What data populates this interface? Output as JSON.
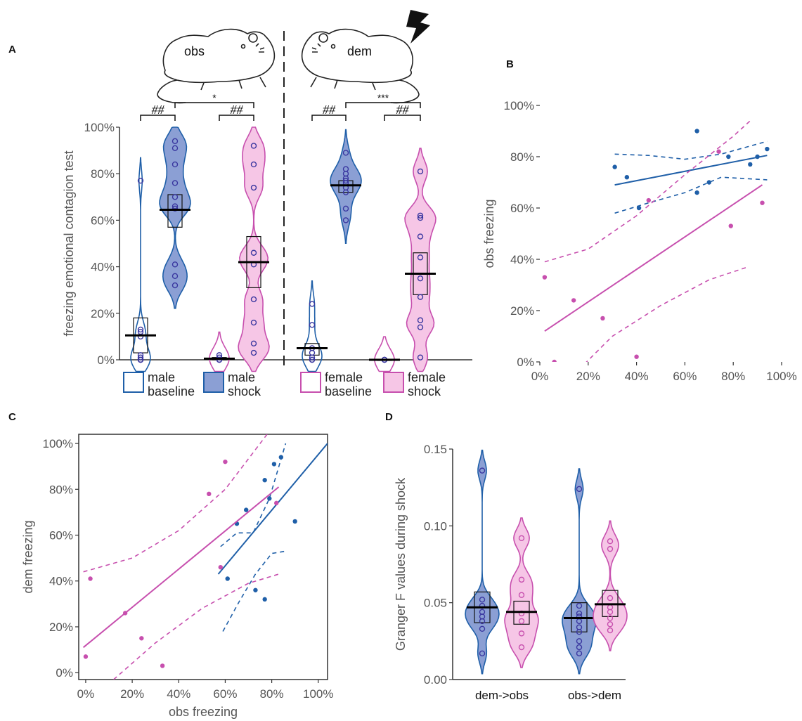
{
  "panels": {
    "a": "A",
    "b": "B",
    "c": "C",
    "d": "D"
  },
  "colors": {
    "male": "#1f5fa8",
    "male_fill": "#8b9fd4",
    "female": "#c74fae",
    "female_fill": "#f6c6e6",
    "median": "#000000"
  },
  "illustration": {
    "obs_label": "obs",
    "dem_label": "dem",
    "icons": [
      "mouse-icon",
      "mouse-icon",
      "lightning-icon"
    ]
  },
  "chart_data": [
    {
      "id": "A",
      "type": "violin",
      "ylabel": "freezing emotional contagion test",
      "ylim": [
        0,
        100
      ],
      "yticks": [
        "0%",
        "20%",
        "40%",
        "60%",
        "80%",
        "100%"
      ],
      "legend": [
        {
          "label_line1": "male",
          "label_line2": "baseline",
          "style": "male-outline"
        },
        {
          "label_line1": "male",
          "label_line2": "shock",
          "style": "male-filled"
        },
        {
          "label_line1": "female",
          "label_line2": "baseline",
          "style": "female-outline"
        },
        {
          "label_line1": "female",
          "label_line2": "shock",
          "style": "female-filled"
        }
      ],
      "groups": [
        {
          "name": "obs male baseline",
          "median": 10.5,
          "box": [
            3,
            18
          ],
          "points": [
            77,
            13,
            12,
            10,
            2,
            1,
            0,
            0,
            0,
            0
          ],
          "sex": "male",
          "filled": false
        },
        {
          "name": "obs male shock",
          "median": 64.5,
          "box": [
            57,
            71
          ],
          "points": [
            94,
            91,
            84,
            76,
            70,
            66,
            65,
            41,
            36,
            32
          ],
          "sex": "male",
          "filled": true
        },
        {
          "name": "obs female baseline",
          "median": 0.5,
          "box": [
            0,
            1
          ],
          "points": [
            2,
            1,
            0,
            0,
            0
          ],
          "sex": "female",
          "filled": false
        },
        {
          "name": "obs female shock",
          "median": 42,
          "box": [
            31,
            53
          ],
          "points": [
            92,
            84,
            74,
            46,
            41,
            26,
            16,
            7,
            3
          ],
          "sex": "female",
          "filled": true
        },
        {
          "name": "dem male baseline",
          "median": 5,
          "box": [
            2,
            7
          ],
          "points": [
            24,
            15,
            5,
            3,
            1,
            0,
            0
          ],
          "sex": "male",
          "filled": false
        },
        {
          "name": "dem male shock",
          "median": 75,
          "box": [
            72,
            77
          ],
          "points": [
            89,
            82,
            80,
            78,
            77,
            76,
            74,
            72,
            65,
            60
          ],
          "sex": "male",
          "filled": true
        },
        {
          "name": "dem female baseline",
          "median": 0,
          "box": [
            0,
            0
          ],
          "points": [
            0,
            0,
            0
          ],
          "sex": "female",
          "filled": false
        },
        {
          "name": "dem female shock",
          "median": 37,
          "box": [
            28,
            46
          ],
          "points": [
            81,
            62,
            61,
            53,
            44,
            35,
            27,
            17,
            14,
            1
          ],
          "sex": "female",
          "filled": true
        }
      ],
      "annotations": {
        "hash1": "##",
        "hash2": "##",
        "hash3": "##",
        "hash4": "##",
        "star_obs": "*",
        "star_dem": "***"
      }
    },
    {
      "id": "B",
      "type": "scatter",
      "xlim": [
        0,
        100
      ],
      "ylim": [
        0,
        100
      ],
      "xticks": [
        "0%",
        "20%",
        "40%",
        "60%",
        "80%",
        "100%"
      ],
      "yticks": [
        "0%",
        "20%",
        "40%",
        "60%",
        "80%",
        "100%"
      ],
      "xlabel": "",
      "ylabel": "obs freezing",
      "series": [
        {
          "sex": "male",
          "points": [
            [
              31,
              76
            ],
            [
              36,
              72
            ],
            [
              41,
              60
            ],
            [
              65,
              90
            ],
            [
              65,
              66
            ],
            [
              70,
              70
            ],
            [
              78,
              80
            ],
            [
              87,
              77
            ],
            [
              90,
              80
            ],
            [
              94,
              83
            ]
          ],
          "fit": [
            [
              31,
              69
            ],
            [
              94,
              80.5
            ]
          ],
          "ci_upper": [
            [
              31,
              81
            ],
            [
              45,
              80.5
            ],
            [
              60,
              79
            ],
            [
              75,
              81
            ],
            [
              94,
              86
            ]
          ],
          "ci_lower": [
            [
              31,
              58
            ],
            [
              45,
              62
            ],
            [
              60,
              66
            ],
            [
              75,
              72
            ],
            [
              94,
              71
            ]
          ]
        },
        {
          "sex": "female",
          "points": [
            [
              2,
              33
            ],
            [
              6,
              0
            ],
            [
              14,
              24
            ],
            [
              26,
              17
            ],
            [
              40,
              2
            ],
            [
              45,
              63
            ],
            [
              74,
              82
            ],
            [
              79,
              53
            ],
            [
              92,
              62
            ]
          ],
          "fit": [
            [
              2,
              12
            ],
            [
              92,
              69
            ]
          ],
          "ci_upper": [
            [
              2,
              39
            ],
            [
              20,
              44
            ],
            [
              40,
              57
            ],
            [
              60,
              73
            ],
            [
              80,
              88
            ],
            [
              87,
              94
            ]
          ],
          "ci_lower": [
            [
              14,
              -5
            ],
            [
              30,
              10
            ],
            [
              50,
              22
            ],
            [
              70,
              32
            ],
            [
              86,
              37
            ]
          ]
        }
      ]
    },
    {
      "id": "C",
      "type": "scatter",
      "xlim": [
        -3,
        104
      ],
      "ylim": [
        -3,
        104
      ],
      "xticks": [
        "0%",
        "20%",
        "40%",
        "60%",
        "80%",
        "100%"
      ],
      "yticks": [
        "0%",
        "20%",
        "40%",
        "60%",
        "80%",
        "100%"
      ],
      "xlabel": "obs freezing",
      "ylabel": "dem freezing",
      "series": [
        {
          "sex": "male",
          "points": [
            [
              61,
              41
            ],
            [
              65,
              65
            ],
            [
              69,
              71
            ],
            [
              73,
              36
            ],
            [
              77,
              32
            ],
            [
              77,
              84
            ],
            [
              79,
              76
            ],
            [
              81,
              91
            ],
            [
              84,
              94
            ],
            [
              90,
              66
            ]
          ],
          "fit": [
            [
              57,
              43
            ],
            [
              104,
              100
            ]
          ],
          "ci_upper": [
            [
              58,
              55
            ],
            [
              65,
              61
            ],
            [
              72,
              61
            ],
            [
              79,
              76
            ],
            [
              86,
              100
            ]
          ],
          "ci_lower": [
            [
              59,
              18
            ],
            [
              66,
              31
            ],
            [
              73,
              43
            ],
            [
              80,
              52
            ],
            [
              86,
              53
            ]
          ]
        },
        {
          "sex": "female",
          "points": [
            [
              0,
              7
            ],
            [
              2,
              41
            ],
            [
              17,
              26
            ],
            [
              24,
              15
            ],
            [
              33,
              3
            ],
            [
              53,
              78
            ],
            [
              58,
              46
            ],
            [
              60,
              92
            ],
            [
              82,
              74
            ]
          ],
          "fit": [
            [
              -1,
              11
            ],
            [
              83,
              81
            ]
          ],
          "ci_upper": [
            [
              -1,
              44
            ],
            [
              20,
              50
            ],
            [
              40,
              62
            ],
            [
              60,
              80
            ],
            [
              78,
              104
            ]
          ],
          "ci_lower": [
            [
              12,
              -3
            ],
            [
              30,
              13
            ],
            [
              50,
              28
            ],
            [
              70,
              39
            ],
            [
              83,
              43
            ]
          ]
        }
      ]
    },
    {
      "id": "D",
      "type": "violin",
      "ylabel": "Granger F values during shock",
      "ylim": [
        0,
        0.15
      ],
      "yticks": [
        "0.00",
        "0.05",
        "0.10",
        "0.15"
      ],
      "categories": [
        "dem->obs",
        "obs->dem"
      ],
      "groups": [
        {
          "name": "dem->obs male",
          "median": 0.047,
          "box": [
            0.037,
            0.057
          ],
          "points": [
            0.136,
            0.052,
            0.048,
            0.044,
            0.041,
            0.038,
            0.033,
            0.017
          ],
          "sex": "male",
          "filled": true
        },
        {
          "name": "dem->obs female",
          "median": 0.044,
          "box": [
            0.036,
            0.051
          ],
          "points": [
            0.092,
            0.065,
            0.055,
            0.043,
            0.038,
            0.03,
            0.021
          ],
          "sex": "female",
          "filled": true
        },
        {
          "name": "obs->dem male",
          "median": 0.04,
          "box": [
            0.031,
            0.05
          ],
          "points": [
            0.124,
            0.048,
            0.043,
            0.041,
            0.038,
            0.034,
            0.031,
            0.025,
            0.021,
            0.017
          ],
          "sex": "male",
          "filled": true
        },
        {
          "name": "obs->dem female",
          "median": 0.049,
          "box": [
            0.041,
            0.058
          ],
          "points": [
            0.09,
            0.085,
            0.053,
            0.047,
            0.044,
            0.04,
            0.036,
            0.032
          ],
          "sex": "female",
          "filled": true
        }
      ]
    }
  ]
}
